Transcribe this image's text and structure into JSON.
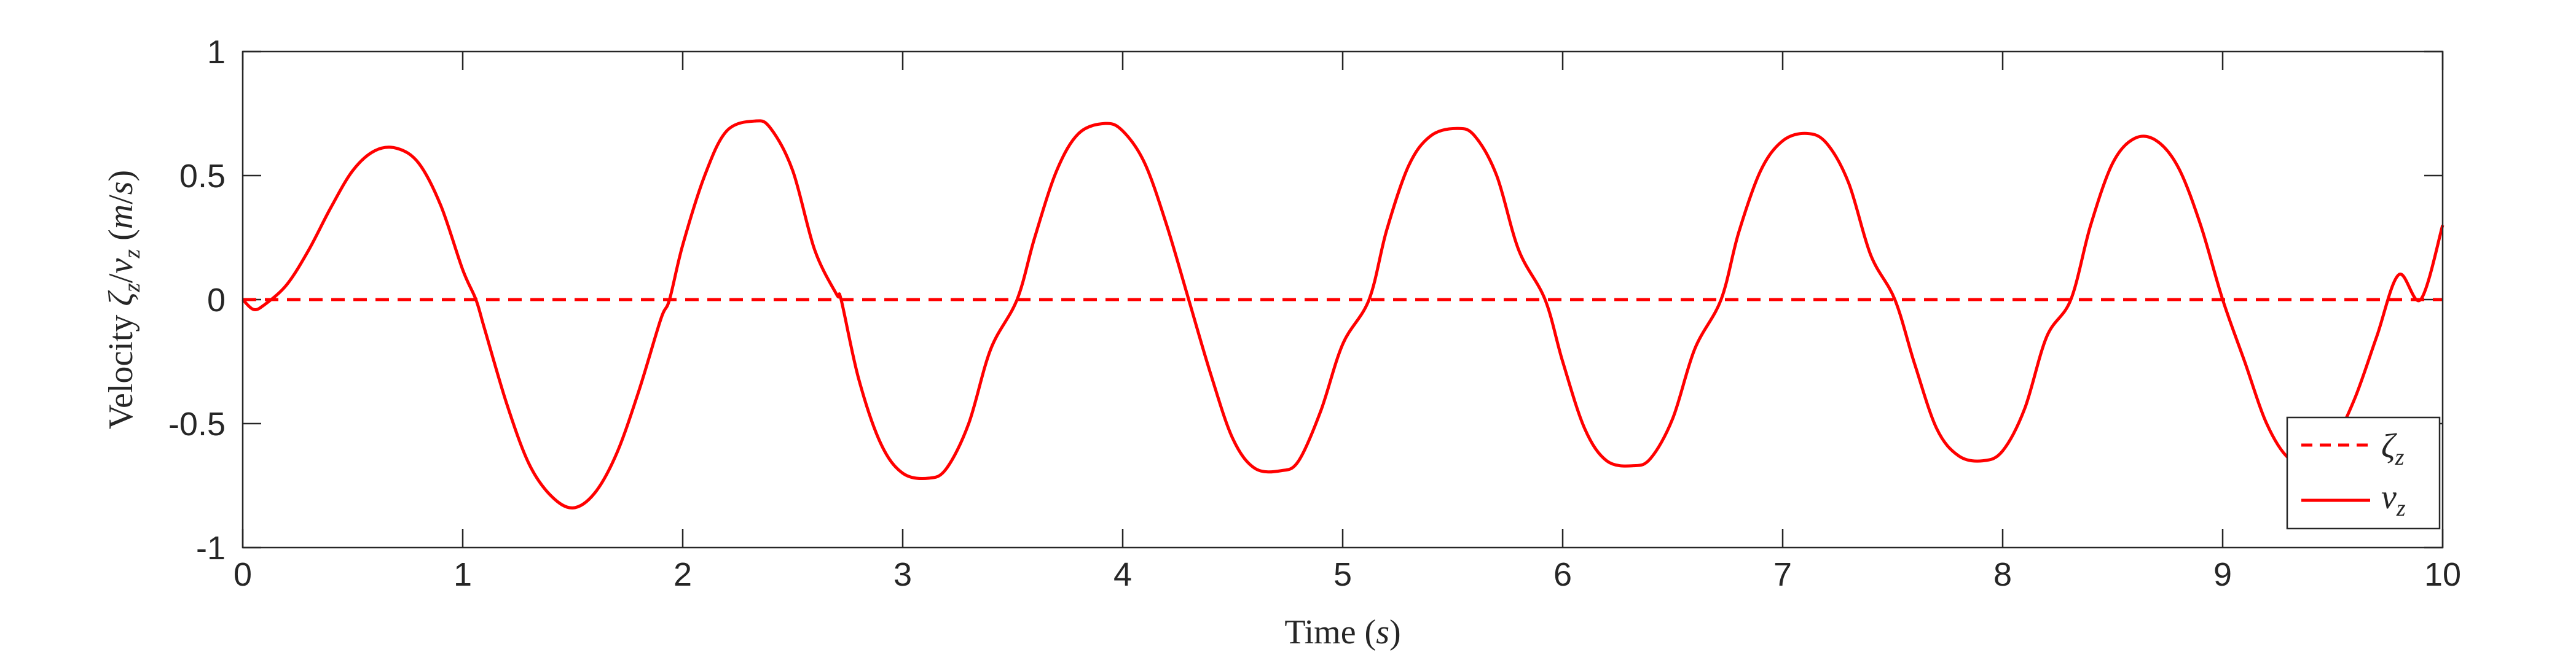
{
  "chart_data": {
    "type": "line",
    "xlabel": "Time (s)",
    "ylabel": "Velocity ζz/vz (m/s)",
    "xlim": [
      0,
      10
    ],
    "ylim": [
      -1,
      1
    ],
    "xticks": [
      0,
      1,
      2,
      3,
      4,
      5,
      6,
      7,
      8,
      9,
      10
    ],
    "yticks": [
      -1,
      -0.5,
      0,
      0.5,
      1
    ],
    "xtick_labels": [
      "0",
      "1",
      "2",
      "3",
      "4",
      "5",
      "6",
      "7",
      "8",
      "9",
      "10"
    ],
    "ytick_labels": [
      "-1",
      "-0.5",
      "0",
      "0.5",
      "1"
    ],
    "grid": false,
    "legend_position": "bottom-right",
    "series": [
      {
        "name": "ζz",
        "style": "dashed",
        "color": "#ff0000",
        "x": [
          0,
          10
        ],
        "y": [
          0,
          0
        ]
      },
      {
        "name": "vz",
        "style": "solid",
        "color": "#ff0000",
        "x": [
          0,
          0.05,
          0.1,
          0.2,
          0.3,
          0.4,
          0.5,
          0.6,
          0.7,
          0.8,
          0.9,
          1.0,
          1.06,
          1.1,
          1.2,
          1.3,
          1.4,
          1.5,
          1.6,
          1.7,
          1.8,
          1.9,
          1.94,
          2.0,
          2.1,
          2.2,
          2.33,
          2.4,
          2.5,
          2.6,
          2.7,
          2.72,
          2.8,
          2.9,
          3.0,
          3.12,
          3.2,
          3.3,
          3.4,
          3.52,
          3.6,
          3.7,
          3.8,
          3.92,
          4.0,
          4.1,
          4.2,
          4.3,
          4.4,
          4.5,
          4.6,
          4.72,
          4.8,
          4.9,
          5.0,
          5.12,
          5.2,
          5.3,
          5.4,
          5.52,
          5.6,
          5.7,
          5.8,
          5.92,
          6.0,
          6.1,
          6.2,
          6.32,
          6.4,
          6.5,
          6.6,
          6.72,
          6.8,
          6.9,
          7.0,
          7.11,
          7.2,
          7.3,
          7.4,
          7.51,
          7.6,
          7.7,
          7.8,
          7.91,
          8.0,
          8.1,
          8.2,
          8.31,
          8.4,
          8.5,
          8.6,
          8.7,
          8.8,
          8.9,
          9.0,
          9.1,
          9.2,
          9.3,
          9.4,
          9.5,
          9.6,
          9.7,
          9.8,
          9.9,
          10.0
        ],
        "y": [
          0,
          -0.04,
          -0.02,
          0.06,
          0.2,
          0.37,
          0.52,
          0.6,
          0.61,
          0.55,
          0.38,
          0.12,
          0.0,
          -0.12,
          -0.42,
          -0.66,
          -0.79,
          -0.84,
          -0.78,
          -0.62,
          -0.37,
          -0.08,
          0.0,
          0.22,
          0.5,
          0.68,
          0.72,
          0.69,
          0.52,
          0.2,
          0.02,
          0.0,
          -0.32,
          -0.58,
          -0.7,
          -0.72,
          -0.68,
          -0.5,
          -0.2,
          0.0,
          0.25,
          0.52,
          0.67,
          0.71,
          0.68,
          0.55,
          0.3,
          0.0,
          -0.3,
          -0.56,
          -0.68,
          -0.69,
          -0.65,
          -0.45,
          -0.18,
          0.0,
          0.28,
          0.54,
          0.66,
          0.69,
          0.66,
          0.5,
          0.2,
          0.0,
          -0.25,
          -0.52,
          -0.65,
          -0.67,
          -0.64,
          -0.48,
          -0.2,
          0.0,
          0.27,
          0.52,
          0.64,
          0.67,
          0.63,
          0.47,
          0.18,
          0.0,
          -0.26,
          -0.52,
          -0.63,
          -0.65,
          -0.61,
          -0.44,
          -0.15,
          0.0,
          0.3,
          0.55,
          0.65,
          0.64,
          0.53,
          0.3,
          0.0,
          -0.25,
          -0.5,
          -0.64,
          -0.66,
          -0.58,
          -0.4,
          -0.15,
          0.1,
          0.0,
          0.3
        ]
      }
    ]
  }
}
